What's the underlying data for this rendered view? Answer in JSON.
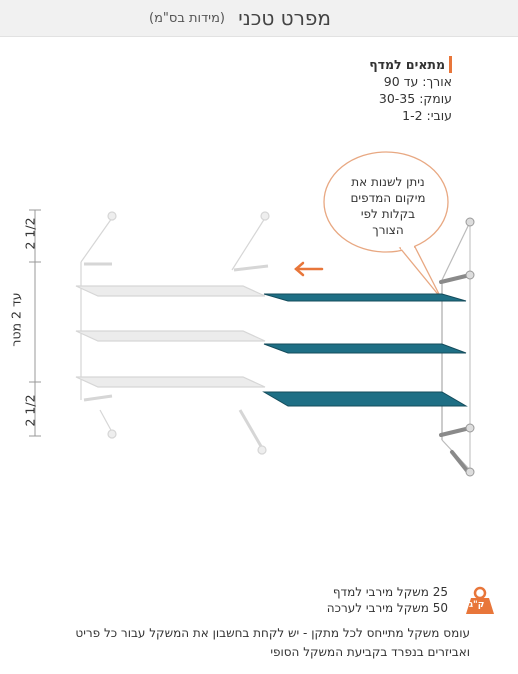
{
  "header": {
    "title": "מפרט טכני",
    "subtitle": "(מידות בס\"מ)"
  },
  "specs": {
    "heading": "מתאים למדף",
    "length": "אורך: עד 90",
    "depth": "עומק: 30-35",
    "thickness": "עובי: 1-2"
  },
  "bubble": {
    "line1": "ניתן לשנות את",
    "line2": "מיקום המדפים",
    "line3": "בקלות לפי",
    "line4": "הצורך"
  },
  "dimensions": {
    "top": "2 1/2",
    "middle": "עד 2 מטר",
    "bottom": "2 1/2"
  },
  "weight": {
    "icon_label": "ק\"ג",
    "shelf_line": "25 משקל מירבי למדף",
    "set_line": "50 משקל מירבי לערכה",
    "note": "עומס משקל מתייחס לכל מתקן - יש לקחת בחשבון את המשקל עבור כל פריט ואביזרים בנפרד בקביעת המשקל הסופי"
  },
  "colors": {
    "accent": "#e8763a",
    "shelf": "#1e6f85",
    "ghost": "#d8d8d8"
  }
}
